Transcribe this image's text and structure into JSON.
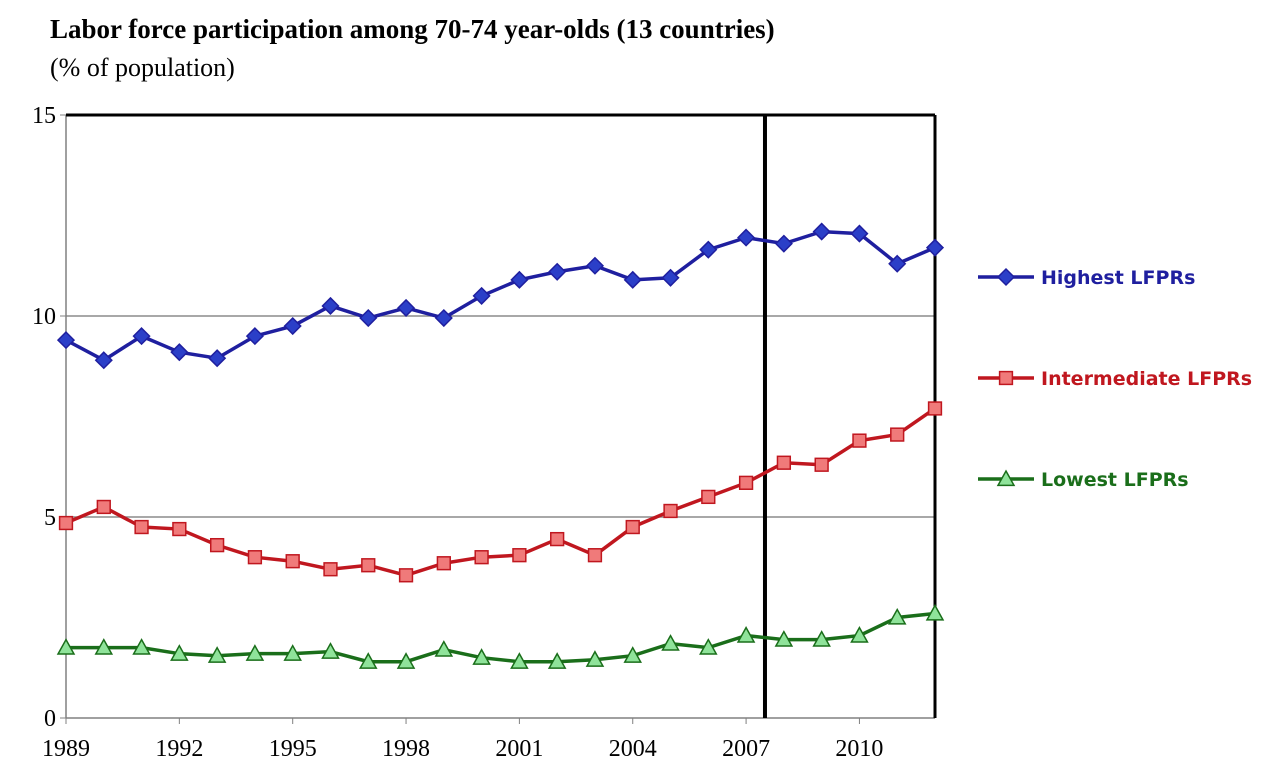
{
  "chart_data": {
    "type": "line",
    "title": "Labor force participation among 70-74 year-olds (13 countries)",
    "subtitle": "(% of population)",
    "x": [
      1989,
      1990,
      1991,
      1992,
      1993,
      1994,
      1995,
      1996,
      1997,
      1998,
      1999,
      2000,
      2001,
      2002,
      2003,
      2004,
      2005,
      2006,
      2007,
      2008,
      2009,
      2010,
      2011,
      2012
    ],
    "series": [
      {
        "name": "Highest LFPRs",
        "color": "#1f1f9f",
        "fill": "#2b3fc8",
        "marker": "diamond",
        "values": [
          9.4,
          8.9,
          9.5,
          9.1,
          8.95,
          9.5,
          9.75,
          10.25,
          9.95,
          10.2,
          9.95,
          10.5,
          10.9,
          11.1,
          11.25,
          10.9,
          10.95,
          11.65,
          11.95,
          11.8,
          12.1,
          12.05,
          11.3,
          11.7
        ]
      },
      {
        "name": "Intermediate LFPRs",
        "color": "#c0171f",
        "fill": "#f07a7a",
        "marker": "square",
        "values": [
          4.85,
          5.25,
          4.75,
          4.7,
          4.3,
          4.0,
          3.9,
          3.7,
          3.8,
          3.55,
          3.85,
          4.0,
          4.05,
          4.45,
          4.05,
          4.75,
          5.15,
          5.5,
          5.85,
          6.35,
          6.3,
          6.9,
          7.05,
          7.7
        ]
      },
      {
        "name": "Lowest LFPRs",
        "color": "#1a6e1a",
        "fill": "#8fe39a",
        "marker": "triangle",
        "values": [
          1.75,
          1.75,
          1.75,
          1.6,
          1.55,
          1.6,
          1.6,
          1.65,
          1.4,
          1.4,
          1.7,
          1.5,
          1.4,
          1.4,
          1.45,
          1.55,
          1.85,
          1.75,
          2.05,
          1.95,
          1.95,
          2.05,
          2.5,
          2.6
        ]
      }
    ],
    "xlim": [
      1989,
      2012
    ],
    "xticks": [
      1989,
      1992,
      1995,
      1998,
      2001,
      2004,
      2007,
      2010
    ],
    "ylim": [
      0,
      15
    ],
    "yticks": [
      0,
      5,
      10,
      15
    ],
    "vlines": [
      2007.5
    ],
    "grid": true,
    "legend": "right"
  }
}
